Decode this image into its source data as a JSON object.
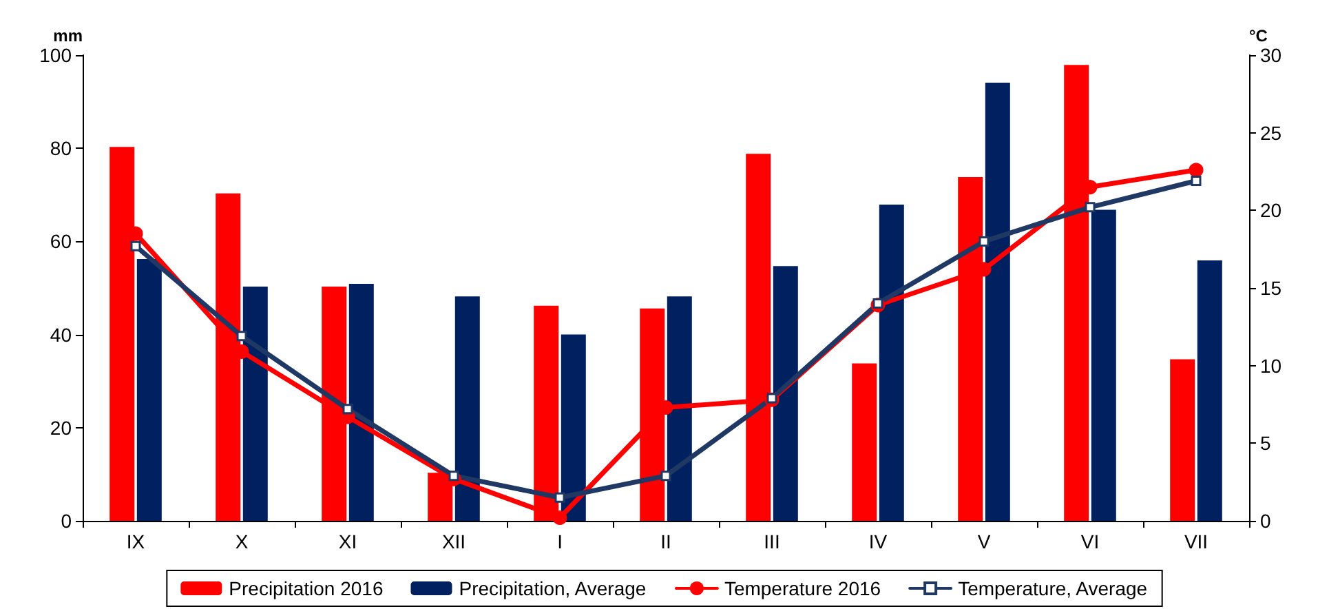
{
  "chart_data": {
    "type": "bar",
    "ylabel": "mm",
    "y2label": "°C",
    "categories": [
      "IX",
      "X",
      "XI",
      "XII",
      "I",
      "II",
      "III",
      "IV",
      "V",
      "VI",
      "VII"
    ],
    "series": [
      {
        "name": "Precipitation 2016",
        "color": "#ff0000",
        "values": [
          80.3,
          70.3,
          50.3,
          10.3,
          46.2,
          45.6,
          78.8,
          33.8,
          73.8,
          97.9,
          34.7
        ]
      },
      {
        "name": "Precipitation, Average",
        "color": "#002060",
        "values": [
          56.2,
          50.3,
          50.9,
          48.2,
          40,
          48.2,
          54.7,
          67.9,
          94.1,
          66.8,
          55.9
        ]
      },
      {
        "name": "Temperature 2016",
        "type": "line",
        "axis": "y2",
        "marker": "circle",
        "color": "#ff0000",
        "values": [
          18.5,
          10.9,
          6.7,
          2.7,
          0.2,
          7.3,
          7.8,
          13.9,
          16.2,
          21.5,
          22.6
        ]
      },
      {
        "name": "Temperature, Average",
        "type": "line",
        "axis": "y2",
        "marker": "square",
        "color": "#1f3864",
        "values": [
          17.7,
          11.9,
          7.2,
          2.9,
          1.5,
          2.9,
          7.9,
          14.0,
          18.0,
          20.2,
          21.9
        ]
      }
    ],
    "ylim": [
      0,
      100
    ],
    "yticks": [
      0,
      20,
      40,
      60,
      80,
      100
    ],
    "y2lim": [
      0,
      30
    ],
    "y2ticks": [
      0,
      5,
      10,
      15,
      20,
      25,
      30
    ],
    "grid": false,
    "legend": "bottom",
    "line_style": "solid"
  }
}
